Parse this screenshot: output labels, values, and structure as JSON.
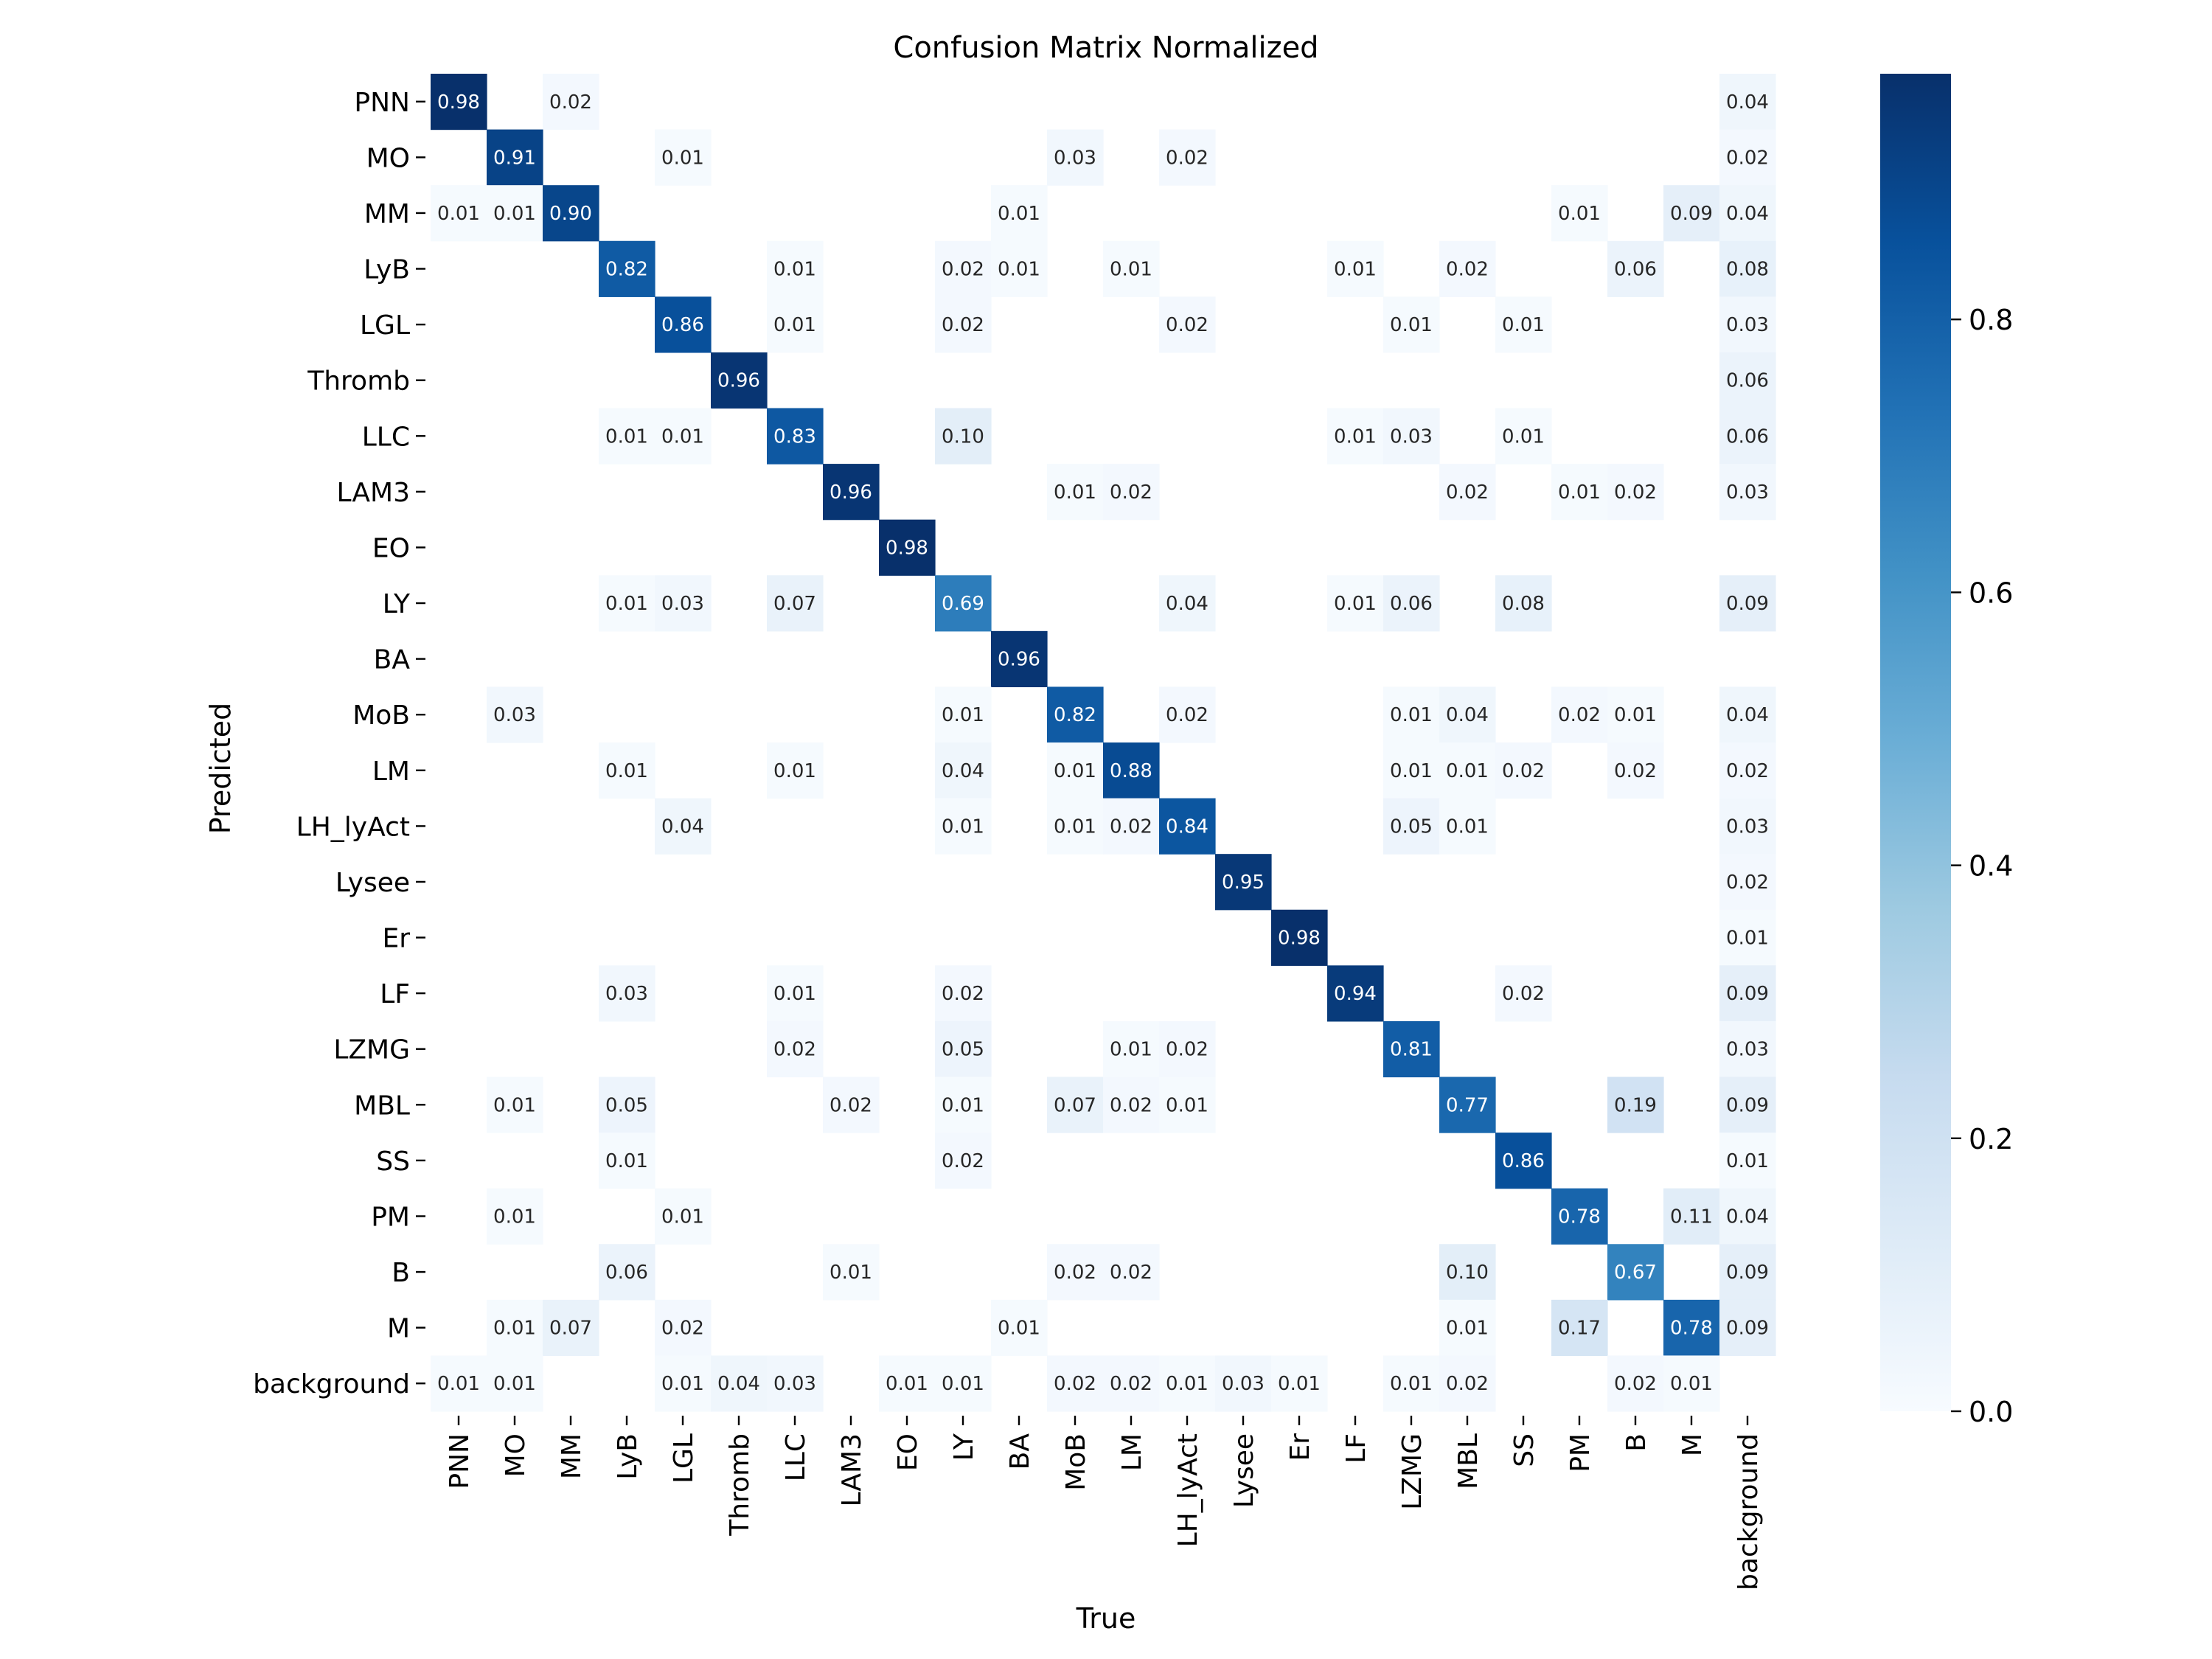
{
  "chart_data": {
    "type": "heatmap",
    "title": "Confusion Matrix Normalized",
    "xlabel": "True",
    "ylabel": "Predicted",
    "x_categories": [
      "PNN",
      "MO",
      "MM",
      "LyB",
      "LGL",
      "Thromb",
      "LLC",
      "LAM3",
      "EO",
      "LY",
      "BA",
      "MoB",
      "LM",
      "LH_lyAct",
      "Lysee",
      "Er",
      "LF",
      "LZMG",
      "MBL",
      "SS",
      "PM",
      "B",
      "M",
      "background"
    ],
    "y_categories": [
      "PNN",
      "MO",
      "MM",
      "LyB",
      "LGL",
      "Thromb",
      "LLC",
      "LAM3",
      "EO",
      "LY",
      "BA",
      "MoB",
      "LM",
      "LH_lyAct",
      "Lysee",
      "Er",
      "LF",
      "LZMG",
      "MBL",
      "SS",
      "PM",
      "B",
      "M",
      "background"
    ],
    "colormap": "Blues",
    "color_range": [
      0,
      0.98
    ],
    "colorbar_ticks": [
      0.0,
      0.2,
      0.4,
      0.6,
      0.8
    ],
    "colorbar_tick_labels": [
      "0.0",
      "0.2",
      "0.4",
      "0.6",
      "0.8"
    ],
    "matrix": [
      [
        0.98,
        null,
        0.02,
        null,
        null,
        null,
        null,
        null,
        null,
        null,
        null,
        null,
        null,
        null,
        null,
        null,
        null,
        null,
        null,
        null,
        null,
        null,
        null,
        0.04
      ],
      [
        null,
        0.91,
        null,
        null,
        0.01,
        null,
        null,
        null,
        null,
        null,
        null,
        0.03,
        null,
        0.02,
        null,
        null,
        null,
        null,
        null,
        null,
        null,
        null,
        null,
        0.02
      ],
      [
        0.01,
        0.01,
        0.9,
        null,
        null,
        null,
        null,
        null,
        null,
        null,
        0.01,
        null,
        null,
        null,
        null,
        null,
        null,
        null,
        null,
        null,
        0.01,
        null,
        0.09,
        0.04
      ],
      [
        null,
        null,
        null,
        0.82,
        null,
        null,
        0.01,
        null,
        null,
        0.02,
        0.01,
        null,
        0.01,
        null,
        null,
        null,
        0.01,
        null,
        0.02,
        null,
        null,
        0.06,
        null,
        0.08
      ],
      [
        null,
        null,
        null,
        null,
        0.86,
        null,
        0.01,
        null,
        null,
        0.02,
        null,
        null,
        null,
        0.02,
        null,
        null,
        null,
        0.01,
        null,
        0.01,
        null,
        null,
        null,
        0.03
      ],
      [
        null,
        null,
        null,
        null,
        null,
        0.96,
        null,
        null,
        null,
        null,
        null,
        null,
        null,
        null,
        null,
        null,
        null,
        null,
        null,
        null,
        null,
        null,
        null,
        0.06
      ],
      [
        null,
        null,
        null,
        0.01,
        0.01,
        null,
        0.83,
        null,
        null,
        0.1,
        null,
        null,
        null,
        null,
        null,
        null,
        0.01,
        0.03,
        null,
        0.01,
        null,
        null,
        null,
        0.06
      ],
      [
        null,
        null,
        null,
        null,
        null,
        null,
        null,
        0.96,
        null,
        null,
        null,
        0.01,
        0.02,
        null,
        null,
        null,
        null,
        null,
        0.02,
        null,
        0.01,
        0.02,
        null,
        0.03
      ],
      [
        null,
        null,
        null,
        null,
        null,
        null,
        null,
        null,
        0.98,
        null,
        null,
        null,
        null,
        null,
        null,
        null,
        null,
        null,
        null,
        null,
        null,
        null,
        null,
        null
      ],
      [
        null,
        null,
        null,
        0.01,
        0.03,
        null,
        0.07,
        null,
        null,
        0.69,
        null,
        null,
        null,
        0.04,
        null,
        null,
        0.01,
        0.06,
        null,
        0.08,
        null,
        null,
        null,
        0.09
      ],
      [
        null,
        null,
        null,
        null,
        null,
        null,
        null,
        null,
        null,
        null,
        0.96,
        null,
        null,
        null,
        null,
        null,
        null,
        null,
        null,
        null,
        null,
        null,
        null,
        null
      ],
      [
        null,
        0.03,
        null,
        null,
        null,
        null,
        null,
        null,
        null,
        0.01,
        null,
        0.82,
        null,
        0.02,
        null,
        null,
        null,
        0.01,
        0.04,
        null,
        0.02,
        0.01,
        null,
        0.04
      ],
      [
        null,
        null,
        null,
        0.01,
        null,
        null,
        0.01,
        null,
        null,
        0.04,
        null,
        0.01,
        0.88,
        null,
        null,
        null,
        null,
        0.01,
        0.01,
        0.02,
        null,
        0.02,
        null,
        0.02
      ],
      [
        null,
        null,
        null,
        null,
        0.04,
        null,
        null,
        null,
        null,
        0.01,
        null,
        0.01,
        0.02,
        0.84,
        null,
        null,
        null,
        0.05,
        0.01,
        null,
        null,
        null,
        null,
        0.03
      ],
      [
        null,
        null,
        null,
        null,
        null,
        null,
        null,
        null,
        null,
        null,
        null,
        null,
        null,
        null,
        0.95,
        null,
        null,
        null,
        null,
        null,
        null,
        null,
        null,
        0.02
      ],
      [
        null,
        null,
        null,
        null,
        null,
        null,
        null,
        null,
        null,
        null,
        null,
        null,
        null,
        null,
        null,
        0.98,
        null,
        null,
        null,
        null,
        null,
        null,
        null,
        0.01
      ],
      [
        null,
        null,
        null,
        0.03,
        null,
        null,
        0.01,
        null,
        null,
        0.02,
        null,
        null,
        null,
        null,
        null,
        null,
        0.94,
        null,
        null,
        0.02,
        null,
        null,
        null,
        0.09
      ],
      [
        null,
        null,
        null,
        null,
        null,
        null,
        0.02,
        null,
        null,
        0.05,
        null,
        null,
        0.01,
        0.02,
        null,
        null,
        null,
        0.81,
        null,
        null,
        null,
        null,
        null,
        0.03
      ],
      [
        null,
        0.01,
        null,
        0.05,
        null,
        null,
        null,
        0.02,
        null,
        0.01,
        null,
        0.07,
        0.02,
        0.01,
        null,
        null,
        null,
        null,
        0.77,
        null,
        null,
        0.19,
        null,
        0.09
      ],
      [
        null,
        null,
        null,
        0.01,
        null,
        null,
        null,
        null,
        null,
        0.02,
        null,
        null,
        null,
        null,
        null,
        null,
        null,
        null,
        null,
        0.86,
        null,
        null,
        null,
        0.01
      ],
      [
        null,
        0.01,
        null,
        null,
        0.01,
        null,
        null,
        null,
        null,
        null,
        null,
        null,
        null,
        null,
        null,
        null,
        null,
        null,
        null,
        null,
        0.78,
        null,
        0.11,
        0.04
      ],
      [
        null,
        null,
        null,
        0.06,
        null,
        null,
        null,
        0.01,
        null,
        null,
        null,
        0.02,
        0.02,
        null,
        null,
        null,
        null,
        null,
        0.1,
        null,
        null,
        0.67,
        null,
        0.09
      ],
      [
        null,
        0.01,
        0.07,
        null,
        0.02,
        null,
        null,
        null,
        null,
        null,
        0.01,
        null,
        null,
        null,
        null,
        null,
        null,
        null,
        0.01,
        null,
        0.17,
        null,
        0.78,
        0.09
      ],
      [
        0.01,
        0.01,
        null,
        null,
        0.01,
        0.04,
        0.03,
        null,
        0.01,
        0.01,
        null,
        0.02,
        0.02,
        0.01,
        0.03,
        0.01,
        null,
        0.01,
        0.02,
        null,
        null,
        0.02,
        0.01,
        null
      ]
    ]
  }
}
